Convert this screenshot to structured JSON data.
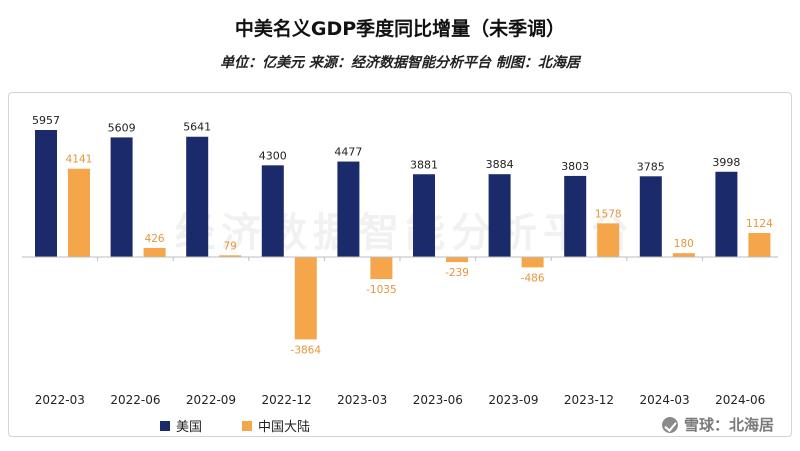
{
  "header": {
    "title": "中美名义GDP季度同比增量（未季调）",
    "subtitle": "单位：亿美元 来源：经济数据智能分析平台 制图：北海居"
  },
  "watermark": "经济数据智能分析平台",
  "footer": {
    "text": "雪球：北海居",
    "icon": "snowball-icon"
  },
  "colors": {
    "us": "#1b2a6b",
    "cn": "#f5a54a"
  },
  "chart_data": {
    "type": "bar",
    "categories": [
      "2022-03",
      "2022-06",
      "2022-09",
      "2022-12",
      "2023-03",
      "2023-06",
      "2023-09",
      "2023-12",
      "2024-03",
      "2024-06"
    ],
    "series": [
      {
        "name": "美国",
        "values": [
          5957,
          5609,
          5641,
          4300,
          4477,
          3881,
          3884,
          3803,
          3785,
          3998
        ]
      },
      {
        "name": "中国大陆",
        "values": [
          4141,
          426,
          79,
          -3864,
          -1035,
          -239,
          -486,
          1578,
          180,
          1124
        ]
      }
    ],
    "grid": false,
    "legend_position": "bottom"
  }
}
